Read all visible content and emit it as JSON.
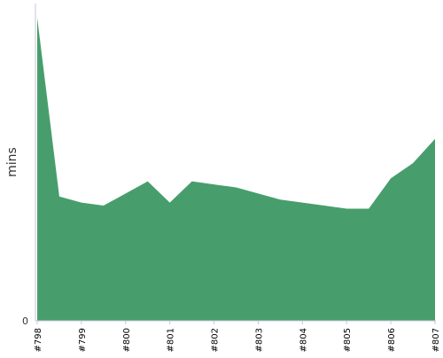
{
  "chart_data": {
    "type": "area",
    "categories": [
      "#798",
      "#799",
      "#800",
      "#801",
      "#802",
      "#803",
      "#804",
      "#805",
      "#806",
      "#807"
    ],
    "x": [
      0,
      1,
      2,
      3,
      4,
      5,
      6,
      7,
      8,
      9,
      10,
      11,
      12,
      13,
      14,
      15,
      16,
      17,
      18
    ],
    "series": [
      {
        "values": [
          100,
          41,
          39,
          38,
          42,
          46,
          39,
          46,
          45,
          44,
          42,
          40,
          39,
          38,
          37,
          37,
          47,
          52,
          60
        ]
      }
    ],
    "ylabel": "mins",
    "ylim": [
      0,
      100
    ],
    "yticks": [
      0
    ],
    "grid": false,
    "colors": {
      "fill": "#479e6c",
      "axis": "#c7c7d8",
      "text": "#333333"
    }
  }
}
